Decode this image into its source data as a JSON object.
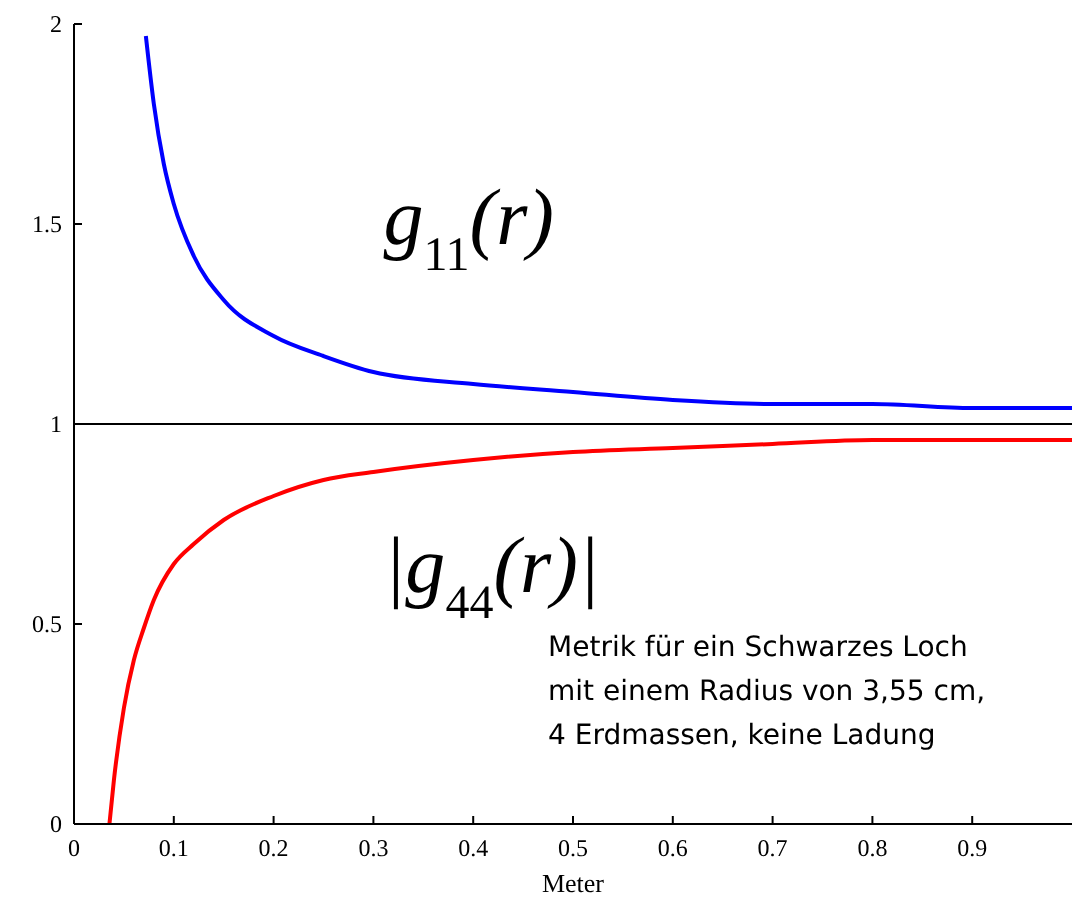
{
  "chart_data": {
    "type": "line",
    "xlabel": "Meter",
    "xlim": [
      0,
      1
    ],
    "ylim": [
      0,
      2
    ],
    "xticks": [
      0,
      0.1,
      0.2,
      0.3,
      0.4,
      0.5,
      0.6,
      0.7,
      0.8,
      0.9
    ],
    "yticks": [
      0,
      0.5,
      1,
      1.5,
      2
    ],
    "grid": false,
    "marker": "none",
    "line_style": "solid",
    "series": [
      {
        "name": "g$_{11}$(r)",
        "color": "#0000ff",
        "x": [
          0.072,
          0.08,
          0.09,
          0.1,
          0.12,
          0.15,
          0.2,
          0.25,
          0.3,
          0.4,
          0.5,
          0.6,
          0.7,
          0.8,
          0.9,
          1.0
        ],
        "values": [
          1.97,
          1.8,
          1.65,
          1.55,
          1.42,
          1.31,
          1.22,
          1.17,
          1.13,
          1.1,
          1.08,
          1.06,
          1.05,
          1.05,
          1.04,
          1.04
        ]
      },
      {
        "name": "|g$_{44}$(r)|",
        "color": "#ff0000",
        "x": [
          0.0355,
          0.04,
          0.05,
          0.06,
          0.07,
          0.08,
          0.1,
          0.12,
          0.15,
          0.2,
          0.25,
          0.3,
          0.4,
          0.5,
          0.6,
          0.7,
          0.8,
          0.9,
          1.0
        ],
        "values": [
          0,
          0.11,
          0.29,
          0.41,
          0.49,
          0.56,
          0.65,
          0.7,
          0.76,
          0.82,
          0.86,
          0.88,
          0.91,
          0.93,
          0.94,
          0.95,
          0.96,
          0.96,
          0.96
        ]
      }
    ],
    "ref_lines": [
      {
        "axis": "y",
        "value": 1,
        "color": "#000000"
      }
    ],
    "annotations": [
      "Metrik für ein Schwarzes Loch\nmit einem Radius von 3,55 cm,\n4 Erdmassen,  keine Ladung"
    ]
  }
}
